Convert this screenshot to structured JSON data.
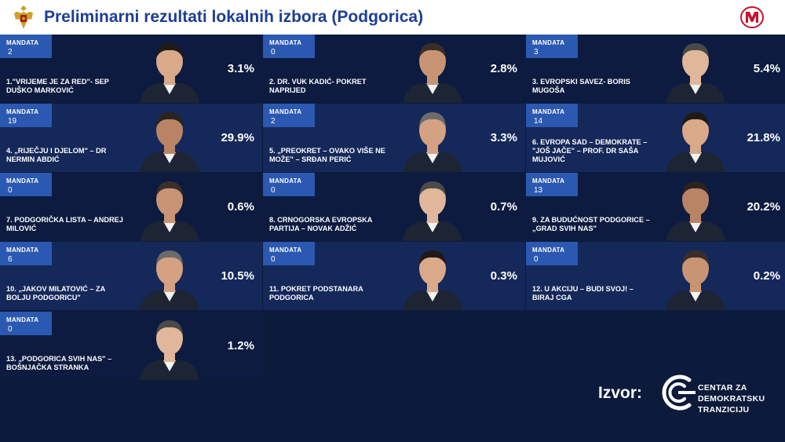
{
  "header": {
    "title": "Preliminarni rezultati lokalnih izbora (Podgorica)"
  },
  "mandate_label": "MANDATA",
  "colors": {
    "title": "#1c3f94",
    "background": "#0c1a3b",
    "card_dark": "#0c1b3f",
    "card_light": "#15285a",
    "mandate_box": "#2b58b0",
    "brand_red": "#c8102e"
  },
  "results": [
    {
      "mandates": "2",
      "name": "1.\"VRIJEME JE ZA RED\"- SEP DUŠKO MARKOVIĆ",
      "percent": "3.1%"
    },
    {
      "mandates": "0",
      "name": "2. DR. VUK KADIĆ- POKRET NAPRIJED",
      "percent": "2.8%"
    },
    {
      "mandates": "3",
      "name": "3. EVROPSKI SAVEZ- BORIS MUGOŠA",
      "percent": "5.4%"
    },
    {
      "mandates": "19",
      "name": "4. „RIJEČJU I DJELOM\" – DR NERMIN ABDIĆ",
      "percent": "29.9%"
    },
    {
      "mandates": "2",
      "name": "5. „PREOKRET – OVAKO VIŠE NE MOŽE\" – SRĐAN PERIĆ",
      "percent": "3.3%"
    },
    {
      "mandates": "14",
      "name": "6. EVROPA SAD – DEMOKRATE – \"JOŠ JAČE\" – PROF. DR SAŠA MUJOVIĆ",
      "percent": "21.8%"
    },
    {
      "mandates": "0",
      "name": "7. PODGORIČKA LISTA – ANDREJ MILOVIĆ",
      "percent": "0.6%"
    },
    {
      "mandates": "0",
      "name": "8. CRNOGORSKA EVROPSKA PARTIJA – NOVAK ADŽIĆ",
      "percent": "0.7%"
    },
    {
      "mandates": "13",
      "name": "9. ZA BUDUĆNOST PODGORICE – „GRAD SVIH NAS\"",
      "percent": "20.2%"
    },
    {
      "mandates": "6",
      "name": "10. „JAKOV MILATOVIĆ – ZA BOLJU PODGORICU\"",
      "percent": "10.5%"
    },
    {
      "mandates": "0",
      "name": "11. POKRET PODSTANARA PODGORICA",
      "percent": "0.3%"
    },
    {
      "mandates": "0",
      "name": "12. U AKCIJU – BUDI SVOJ! – BIRAJ CGA",
      "percent": "0.2%"
    },
    {
      "mandates": "0",
      "name": "13. „PODGORICA SVIH NAS\" – BOŠNJAČKA STRANKA",
      "percent": "1.2%"
    }
  ],
  "footer": {
    "source_label": "Izvor:",
    "org_line1": "CENTAR ZA",
    "org_line2": "DEMOKRATSKU",
    "org_line3": "TRANZICIJU"
  }
}
